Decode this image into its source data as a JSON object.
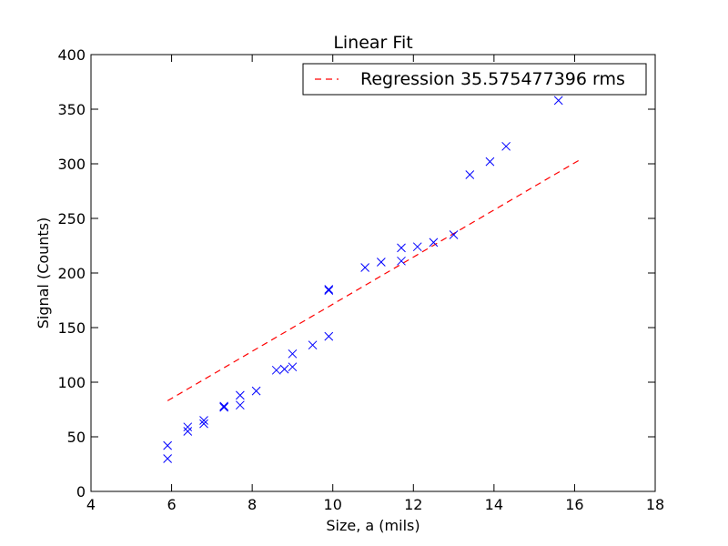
{
  "chart_data": {
    "type": "scatter",
    "title": "Linear Fit",
    "xlabel": "Size, a (mils)",
    "ylabel": "Signal (Counts)",
    "xlim": [
      4,
      18
    ],
    "ylim": [
      0,
      400
    ],
    "xticks": [
      4,
      6,
      8,
      10,
      12,
      14,
      16,
      18
    ],
    "yticks": [
      0,
      50,
      100,
      150,
      200,
      250,
      300,
      350,
      400
    ],
    "grid": false,
    "legend_position": "top-right",
    "series": [
      {
        "kind": "scatter",
        "marker": "x",
        "color": "#0000ff",
        "points": [
          [
            5.9,
            42
          ],
          [
            5.9,
            30
          ],
          [
            6.4,
            59
          ],
          [
            6.4,
            55
          ],
          [
            6.8,
            65
          ],
          [
            6.8,
            62
          ],
          [
            7.3,
            78
          ],
          [
            7.3,
            77
          ],
          [
            7.7,
            88
          ],
          [
            7.7,
            79
          ],
          [
            8.1,
            92
          ],
          [
            8.6,
            111
          ],
          [
            8.8,
            112
          ],
          [
            9.0,
            114
          ],
          [
            9.0,
            126
          ],
          [
            9.5,
            134
          ],
          [
            9.9,
            185
          ],
          [
            9.9,
            184
          ],
          [
            9.9,
            142
          ],
          [
            10.8,
            205
          ],
          [
            11.2,
            210
          ],
          [
            11.7,
            223
          ],
          [
            11.7,
            211
          ],
          [
            12.1,
            224
          ],
          [
            12.5,
            228
          ],
          [
            13.0,
            235
          ],
          [
            13.4,
            290
          ],
          [
            13.9,
            302
          ],
          [
            14.3,
            316
          ],
          [
            15.6,
            358
          ]
        ]
      },
      {
        "name": "Regression 35.575477396 rms",
        "kind": "line",
        "style": "dashed",
        "color": "#ff0000",
        "points": [
          [
            5.9,
            83
          ],
          [
            16.1,
            303
          ]
        ]
      }
    ]
  }
}
